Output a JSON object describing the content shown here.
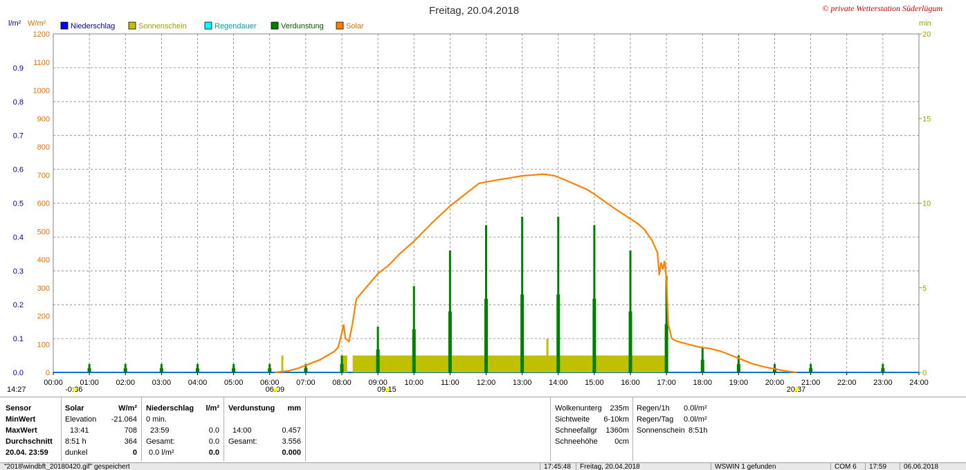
{
  "title": "Freitag, 20.04.2018",
  "copyright": "© private Wetterstation Süderlügum",
  "units": {
    "left1": "l/m²",
    "left2": "W/m²",
    "right": "min"
  },
  "legend": [
    {
      "label": "Niederschlag",
      "color": "#0000ff"
    },
    {
      "label": "Sonnenschein",
      "color": "#c0c000"
    },
    {
      "label": "Regendauer",
      "color": "#00ffff"
    },
    {
      "label": "Verdunstung",
      "color": "#008000"
    },
    {
      "label": "Solar",
      "color": "#ff8000"
    }
  ],
  "chart_data": {
    "type": "bar",
    "title": "Freitag, 20.04.2018",
    "x_ticks": [
      "00:00",
      "01:00",
      "02:00",
      "03:00",
      "04:00",
      "05:00",
      "06:00",
      "07:00",
      "08:00",
      "09:00",
      "10:00",
      "11:00",
      "12:00",
      "13:00",
      "14:00",
      "15:00",
      "16:00",
      "17:00",
      "18:00",
      "19:00",
      "20:00",
      "21:00",
      "22:00",
      "23:00",
      "24:00"
    ],
    "y_left_rain": {
      "ticks": [
        "0.0",
        "0.1",
        "0.2",
        "0.3",
        "0.4",
        "0.5",
        "0.6",
        "0.7",
        "0.8",
        "0.9"
      ],
      "range": [
        0,
        1.0
      ]
    },
    "y_left_solar": {
      "ticks": [
        "0",
        "100",
        "200",
        "300",
        "400",
        "500",
        "600",
        "700",
        "800",
        "900",
        "1000",
        "1100",
        "1200"
      ],
      "range": [
        0,
        1200
      ]
    },
    "y_right_minutes": {
      "ticks": [
        "0",
        "5",
        "10",
        "15",
        "20"
      ],
      "range": [
        0,
        20
      ]
    },
    "grid": true,
    "series": [
      {
        "name": "Solar",
        "unit": "W/m²",
        "type": "line",
        "points": [
          [
            6.15,
            0
          ],
          [
            6.5,
            5
          ],
          [
            6.8,
            15
          ],
          [
            7.0,
            25
          ],
          [
            7.2,
            35
          ],
          [
            7.4,
            45
          ],
          [
            7.6,
            60
          ],
          [
            7.8,
            75
          ],
          [
            7.9,
            90
          ],
          [
            8.0,
            140
          ],
          [
            8.05,
            170
          ],
          [
            8.1,
            120
          ],
          [
            8.2,
            110
          ],
          [
            8.3,
            175
          ],
          [
            8.4,
            260
          ],
          [
            8.6,
            290
          ],
          [
            8.8,
            320
          ],
          [
            9.0,
            350
          ],
          [
            9.3,
            380
          ],
          [
            9.6,
            420
          ],
          [
            10.0,
            465
          ],
          [
            10.5,
            530
          ],
          [
            11.0,
            590
          ],
          [
            11.5,
            640
          ],
          [
            11.8,
            670
          ],
          [
            12.0,
            675
          ],
          [
            12.3,
            682
          ],
          [
            12.6,
            688
          ],
          [
            13.0,
            697
          ],
          [
            13.3,
            700
          ],
          [
            13.6,
            703
          ],
          [
            13.9,
            697
          ],
          [
            14.2,
            682
          ],
          [
            14.5,
            665
          ],
          [
            14.8,
            648
          ],
          [
            15.0,
            632
          ],
          [
            15.3,
            605
          ],
          [
            15.6,
            578
          ],
          [
            15.9,
            553
          ],
          [
            16.2,
            528
          ],
          [
            16.4,
            505
          ],
          [
            16.6,
            468
          ],
          [
            16.75,
            425
          ],
          [
            16.8,
            345
          ],
          [
            16.85,
            390
          ],
          [
            16.9,
            365
          ],
          [
            16.95,
            395
          ],
          [
            17.0,
            330
          ],
          [
            17.05,
            170
          ],
          [
            17.15,
            120
          ],
          [
            17.3,
            110
          ],
          [
            17.6,
            100
          ],
          [
            17.9,
            90
          ],
          [
            18.2,
            85
          ],
          [
            18.5,
            75
          ],
          [
            18.8,
            60
          ],
          [
            19.1,
            45
          ],
          [
            19.4,
            30
          ],
          [
            19.7,
            20
          ],
          [
            20.0,
            12
          ],
          [
            20.3,
            5
          ],
          [
            20.6,
            0
          ]
        ]
      },
      {
        "name": "Sonnenschein",
        "unit": "min",
        "type": "bar",
        "start": 6.3,
        "end": 17.0,
        "level_min": 1.0,
        "spikes": [
          [
            6.35,
            1.0
          ],
          [
            8.1,
            1.0
          ],
          [
            13.7,
            2.0
          ]
        ],
        "gap": [
          8.15,
          8.3
        ]
      },
      {
        "name": "Verdunstung",
        "unit": "min",
        "type": "bar",
        "values": [
          [
            1,
            0.5
          ],
          [
            2,
            0.5
          ],
          [
            3,
            0.5
          ],
          [
            4,
            0.5
          ],
          [
            5,
            0.5
          ],
          [
            6,
            0.5
          ],
          [
            7,
            0.5
          ],
          [
            8,
            1.0
          ],
          [
            9,
            2.7
          ],
          [
            10,
            5.1
          ],
          [
            11,
            7.2
          ],
          [
            12,
            8.7
          ],
          [
            13,
            9.2
          ],
          [
            14,
            9.2
          ],
          [
            15,
            8.7
          ],
          [
            16,
            7.2
          ],
          [
            17,
            5.7
          ],
          [
            18,
            1.5
          ],
          [
            19,
            1.0
          ],
          [
            20,
            0.5
          ],
          [
            21,
            0.5
          ],
          [
            23,
            0.5
          ]
        ]
      }
    ],
    "markers_below_axis": [
      {
        "label": "14:27",
        "hour": 0.0
      },
      {
        "label": "-0:36",
        "hour": 0.6
      },
      {
        "label": "06:09",
        "hour": 6.15
      },
      {
        "label": "09:15",
        "hour": 9.25
      },
      {
        "label": "20:37",
        "hour": 20.6
      }
    ]
  },
  "panel": {
    "col1": {
      "header": "Sensor",
      "rows": [
        "MinWert",
        "MaxWert",
        "Durchschnitt",
        "20.04. 23:59"
      ]
    },
    "col2": {
      "header": "Solar",
      "unit": "W/m²",
      "rows": [
        [
          "Elevation",
          "-21.064"
        ],
        [
          "13:41",
          "708"
        ],
        [
          "8:51 h",
          "364"
        ],
        [
          "dunkel",
          "0"
        ]
      ]
    },
    "col3": {
      "header": "Niederschlag",
      "unit": "l/m²",
      "rows": [
        [
          "0 min.",
          ""
        ],
        [
          "23:59",
          "0.0"
        ],
        [
          "Gesamt:",
          "0.0"
        ],
        [
          "0.0 l/m²",
          "0.0"
        ]
      ]
    },
    "col4": {
      "header": "Verdunstung",
      "unit": "mm",
      "rows": [
        [
          "",
          ""
        ],
        [
          "14:00",
          "0.457"
        ],
        [
          "Gesamt:",
          "3.556"
        ],
        [
          "",
          "0.000"
        ]
      ]
    },
    "col5": {
      "rows": [
        [
          "Wolkenunterg",
          "235m"
        ],
        [
          "Sichtweite",
          "6-10km"
        ],
        [
          "Schneefallgr",
          "1360m"
        ],
        [
          "Schneehöhe",
          "0cm"
        ]
      ]
    },
    "col6": {
      "rows": [
        [
          "Regen/1h",
          "0.0l/m²"
        ],
        [
          "Regen/Tag",
          "0.0l/m²"
        ],
        [
          "Sonnenschein",
          "8:51h"
        ]
      ]
    }
  },
  "statusbar": {
    "file": "\"2018\\windbft_20180420.gif\" gespeichert",
    "time": "17:45:48",
    "date": "Freitag, 20.04.2018",
    "found": "WSWIN 1 gefunden",
    "com": "COM 6",
    "clock": "17:59",
    "curdate": "06.06.2018"
  }
}
